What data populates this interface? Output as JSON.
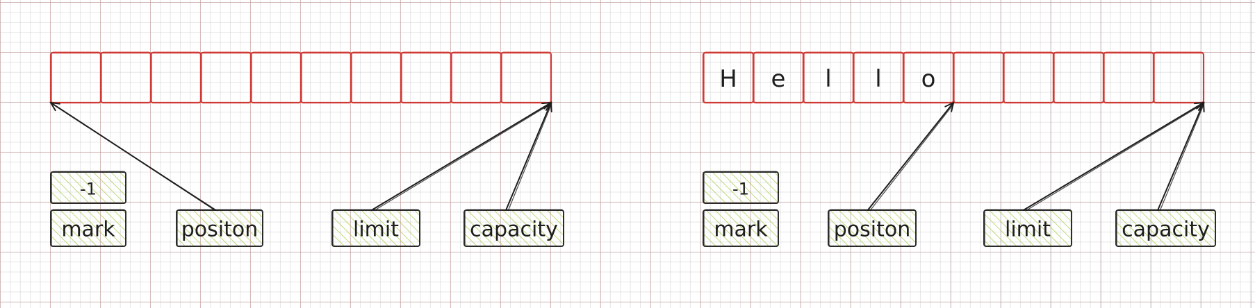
{
  "colors": {
    "cell_stroke": "#d03a34",
    "label_stroke": "#2b2b2b",
    "label_hatch": "#9ccc3c",
    "text": "#1e1e1e"
  },
  "panels": [
    {
      "cells": [
        "",
        "",
        "",
        "",
        "",
        "",
        "",
        "",
        "",
        ""
      ],
      "mark_value": "-1",
      "labels": {
        "mark": "mark",
        "position": "positon",
        "limit": "limit",
        "capacity": "capacity"
      },
      "pointers": {
        "position": 0,
        "limit": 10,
        "capacity": 10
      }
    },
    {
      "cells": [
        "H",
        "e",
        "l",
        "l",
        "o",
        "",
        "",
        "",
        "",
        ""
      ],
      "mark_value": "-1",
      "labels": {
        "mark": "mark",
        "position": "positon",
        "limit": "limit",
        "capacity": "capacity"
      },
      "pointers": {
        "position": 5,
        "limit": 10,
        "capacity": 10
      }
    }
  ]
}
